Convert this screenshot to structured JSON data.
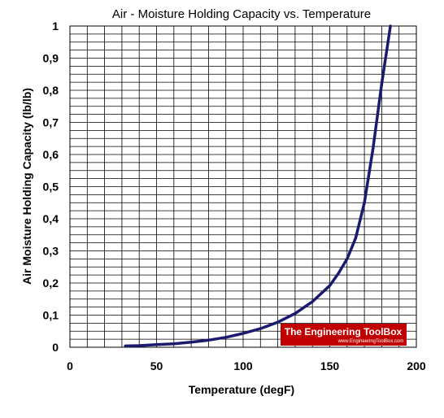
{
  "chart_data": {
    "type": "line",
    "title": "Air - Moisture Holding Capacity vs. Temperature",
    "xlabel": "Temperature (degF)",
    "ylabel": "Air Moisture Holding Capacity (lb/lb)",
    "xlim": [
      0,
      200
    ],
    "ylim": [
      0,
      1
    ],
    "x_ticks": [
      "0",
      "50",
      "100",
      "150",
      "200"
    ],
    "y_ticks": [
      "0",
      "0,1",
      "0,2",
      "0,3",
      "0,4",
      "0,5",
      "0,6",
      "0,7",
      "0,8",
      "0,9",
      "1"
    ],
    "grid": true,
    "series": [
      {
        "color": "#1a1a6e",
        "x": [
          32,
          40,
          50,
          60,
          70,
          80,
          90,
          100,
          110,
          120,
          130,
          140,
          150,
          155,
          160,
          165,
          170,
          175,
          180,
          185
        ],
        "y": [
          0.004,
          0.005,
          0.008,
          0.011,
          0.016,
          0.022,
          0.031,
          0.043,
          0.058,
          0.078,
          0.105,
          0.142,
          0.192,
          0.23,
          0.275,
          0.34,
          0.45,
          0.62,
          0.82,
          1.0
        ]
      }
    ]
  },
  "watermark": {
    "text": "The Engineering ToolBox",
    "sub": "www.EngineeringToolBox.com",
    "color": "#c00000"
  }
}
